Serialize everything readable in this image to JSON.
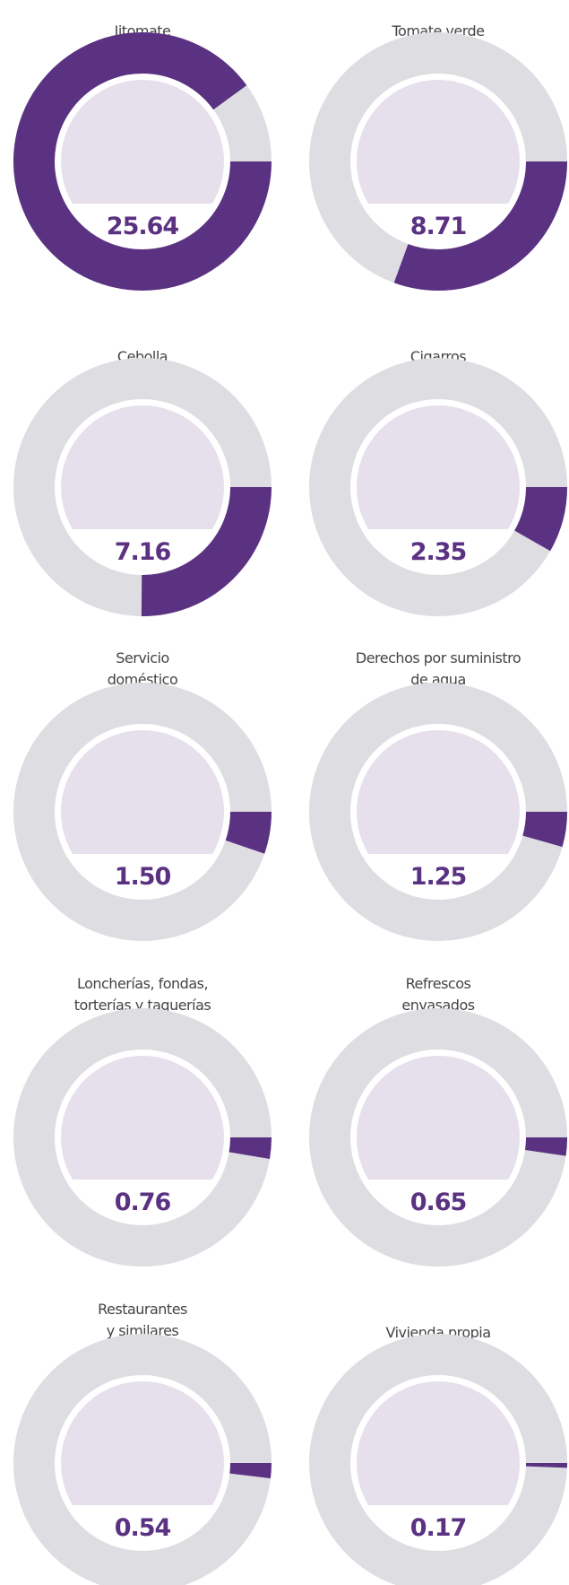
{
  "chart_data": {
    "type": "donut",
    "categories": [
      [
        "Jitomate"
      ],
      [
        "Tomate verde"
      ],
      [
        "Cebolla"
      ],
      [
        "Cigarros"
      ],
      [
        "Servicio",
        "doméstico"
      ],
      [
        "Derechos por suministro",
        "de agua"
      ],
      [
        "Loncherías, fondas,",
        "torterías y taquerías"
      ],
      [
        "Refrescos",
        "envasados"
      ],
      [
        "Restaurantes",
        "y similares"
      ],
      [
        "Vivienda propia"
      ]
    ],
    "values": [
      25.64,
      8.71,
      7.16,
      2.35,
      1.5,
      1.25,
      0.76,
      0.65,
      0.54,
      0.17
    ],
    "value_labels": [
      "25.64",
      "8.71",
      "7.16",
      "2.35",
      "1.50",
      "1.25",
      "0.76",
      "0.65",
      "0.54",
      "0.17"
    ],
    "ylim": [
      0,
      28.5
    ],
    "color": "#5b3282",
    "track_color": "#dedde1",
    "fill_color": "#e6dfec"
  }
}
